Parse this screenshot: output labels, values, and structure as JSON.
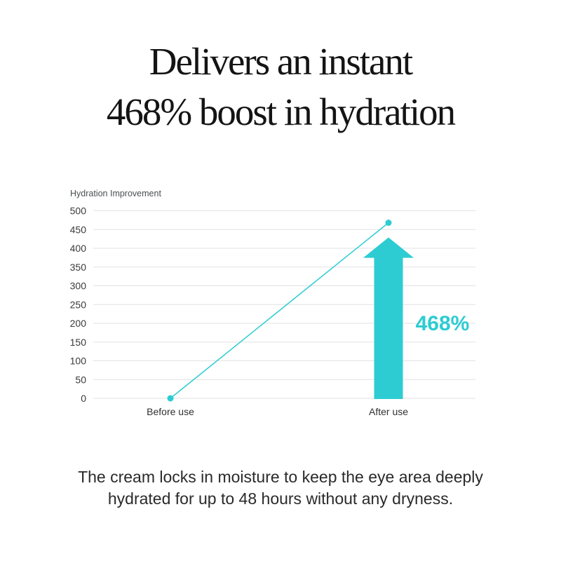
{
  "page": {
    "background": "#ffffff"
  },
  "title": {
    "line1": "Delivers an instant",
    "line2": "468% boost in hydration"
  },
  "chart_data": {
    "type": "line",
    "title": "",
    "xlabel": "",
    "ylabel": "Hydration Improvement",
    "categories": [
      "Before use",
      "After use"
    ],
    "series": [
      {
        "name": "Hydration Improvement",
        "values": [
          0,
          468
        ]
      }
    ],
    "ylim": [
      0,
      500
    ],
    "yticks": [
      0,
      50,
      100,
      150,
      200,
      250,
      300,
      350,
      400,
      450,
      500
    ],
    "grid": "horizontal",
    "legend": "none",
    "annotations": [
      {
        "type": "up-arrow",
        "category": "After use",
        "label": "468%"
      }
    ],
    "colors": {
      "line": "#2CCCD2",
      "arrow": "#2CCCD2",
      "accent": "#2CCCD2",
      "grid": "#E2E2E2",
      "tick_text": "#3A3A3A",
      "axis_title": "#4A4F51",
      "category_text": "#303030"
    }
  },
  "footer": {
    "line1": "The cream locks in moisture to keep the eye area deeply",
    "line2": "hydrated for up to 48 hours without any dryness."
  }
}
